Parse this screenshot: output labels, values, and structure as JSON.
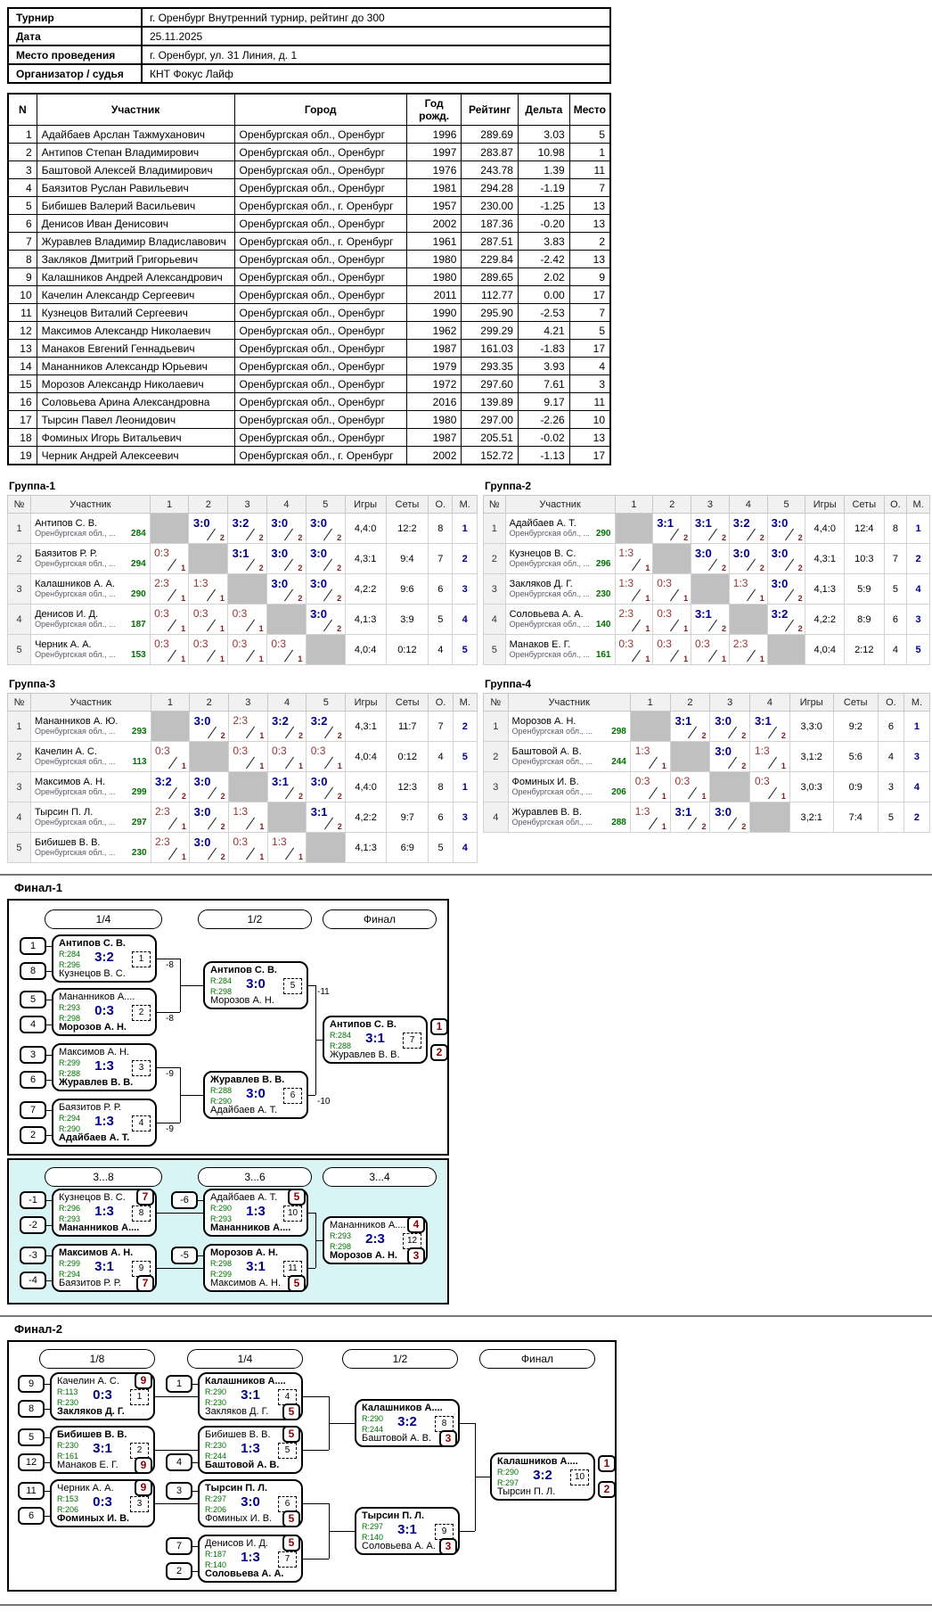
{
  "colors": {
    "win_score": "#00008b",
    "loss_score": "#993333",
    "rating_green": "#007000",
    "place_red": "#8b0000",
    "consolation_bg": "#d9f4f4",
    "self_cell": "#c0c0c0"
  },
  "info": {
    "rows": [
      {
        "label": "Турнир",
        "value": "г. Оренбург Внутренний турнир, рейтинг до 300"
      },
      {
        "label": "Дата",
        "value": "25.11.2025"
      },
      {
        "label": "Место проведения",
        "value": "г. Оренбург, ул. 31 Линия, д. 1"
      },
      {
        "label": "Организатор / судья",
        "value": "КНТ Фокус Лайф"
      }
    ]
  },
  "participants": {
    "headers": [
      "N",
      "Участник",
      "Город",
      "Год рожд.",
      "Рейтинг",
      "Дельта",
      "Место"
    ],
    "rows": [
      [
        "1",
        "Адайбаев Арслан Тажмуханович",
        "Оренбургская обл., Оренбург",
        "1996",
        "289.69",
        "3.03",
        "5"
      ],
      [
        "2",
        "Антипов Степан Владимирович",
        "Оренбургская обл., Оренбург",
        "1997",
        "283.87",
        "10.98",
        "1"
      ],
      [
        "3",
        "Баштовой Алексей Владимирович",
        "Оренбургская обл., Оренбург",
        "1976",
        "243.78",
        "1.39",
        "11"
      ],
      [
        "4",
        "Баязитов Руслан Равильевич",
        "Оренбургская обл., Оренбург",
        "1981",
        "294.28",
        "-1.19",
        "7"
      ],
      [
        "5",
        "Бибишев Валерий Васильевич",
        "Оренбургская обл., г. Оренбург",
        "1957",
        "230.00",
        "-1.25",
        "13"
      ],
      [
        "6",
        "Денисов Иван Денисович",
        "Оренбургская обл., Оренбург",
        "2002",
        "187.36",
        "-0.20",
        "13"
      ],
      [
        "7",
        "Журавлев Владимир Владиславович",
        "Оренбургская обл., г. Оренбург",
        "1961",
        "287.51",
        "3.83",
        "2"
      ],
      [
        "8",
        "Закляков Дмитрий Григорьевич",
        "Оренбургская обл., Оренбург",
        "1980",
        "229.84",
        "-2.42",
        "13"
      ],
      [
        "9",
        "Калашников Андрей Александрович",
        "Оренбургская обл., Оренбург",
        "1980",
        "289.65",
        "2.02",
        "9"
      ],
      [
        "10",
        "Качелин Александр Сергеевич",
        "Оренбургская обл., Оренбург",
        "2011",
        "112.77",
        "0.00",
        "17"
      ],
      [
        "11",
        "Кузнецов Виталий Сергеевич",
        "Оренбургская обл., Оренбург",
        "1990",
        "295.90",
        "-2.53",
        "7"
      ],
      [
        "12",
        "Максимов Александр Николаевич",
        "Оренбургская обл., Оренбург",
        "1962",
        "299.29",
        "4.21",
        "5"
      ],
      [
        "13",
        "Манаков Евгений Геннадьевич",
        "Оренбургская обл., Оренбург",
        "1987",
        "161.03",
        "-1.83",
        "17"
      ],
      [
        "14",
        "Мананников Александр Юрьевич",
        "Оренбургская обл., Оренбург",
        "1979",
        "293.35",
        "3.93",
        "4"
      ],
      [
        "15",
        "Морозов Александр Николаевич",
        "Оренбургская обл., Оренбург",
        "1972",
        "297.60",
        "7.61",
        "3"
      ],
      [
        "16",
        "Соловьева Арина Александровна",
        "Оренбургская обл., Оренбург",
        "2016",
        "139.89",
        "9.17",
        "11"
      ],
      [
        "17",
        "Тырсин Павел Леонидович",
        "Оренбургская обл., Оренбург",
        "1980",
        "297.00",
        "-2.26",
        "10"
      ],
      [
        "18",
        "Фоминых Игорь Витальевич",
        "Оренбургская обл., Оренбург",
        "1987",
        "205.51",
        "-0.02",
        "13"
      ],
      [
        "19",
        "Черник Андрей Алексеевич",
        "Оренбургская обл., г. Оренбург",
        "2002",
        "152.72",
        "-1.13",
        "17"
      ]
    ]
  },
  "groups": [
    {
      "title": "Группа-1",
      "region": "Оренбургская обл., ...",
      "headers": [
        "№",
        "Участник",
        "1",
        "2",
        "3",
        "4",
        "5",
        "Игры",
        "Сеты",
        "О.",
        "М."
      ],
      "players": [
        {
          "name": "Антипов С. В.",
          "rating": "284",
          "cells": [
            "",
            "3:0|2|w",
            "3:2|2|w",
            "3:0|2|w",
            "3:0|2|w"
          ],
          "games": "4,4:0",
          "sets": "12:2",
          "pts": "8",
          "place": "1"
        },
        {
          "name": "Баязитов Р. Р.",
          "rating": "294",
          "cells": [
            "0:3|1|l",
            "",
            "3:1|2|w",
            "3:0|2|w",
            "3:0|2|w"
          ],
          "games": "4,3:1",
          "sets": "9:4",
          "pts": "7",
          "place": "2"
        },
        {
          "name": "Калашников А. А.",
          "rating": "290",
          "cells": [
            "2:3|1|l",
            "1:3|1|l",
            "",
            "3:0|2|w",
            "3:0|2|w"
          ],
          "games": "4,2:2",
          "sets": "9:6",
          "pts": "6",
          "place": "3"
        },
        {
          "name": "Денисов И. Д.",
          "rating": "187",
          "cells": [
            "0:3|1|l",
            "0:3|1|l",
            "0:3|1|l",
            "",
            "3:0|2|w"
          ],
          "games": "4,1:3",
          "sets": "3:9",
          "pts": "5",
          "place": "4"
        },
        {
          "name": "Черник А. А.",
          "rating": "153",
          "cells": [
            "0:3|1|l",
            "0:3|1|l",
            "0:3|1|l",
            "0:3|1|l",
            ""
          ],
          "games": "4,0:4",
          "sets": "0:12",
          "pts": "4",
          "place": "5"
        }
      ]
    },
    {
      "title": "Группа-2",
      "region": "Оренбургская обл., ...",
      "headers": [
        "№",
        "Участник",
        "1",
        "2",
        "3",
        "4",
        "5",
        "Игры",
        "Сеты",
        "О.",
        "М."
      ],
      "players": [
        {
          "name": "Адайбаев А. Т.",
          "rating": "290",
          "cells": [
            "",
            "3:1|2|w",
            "3:1|2|w",
            "3:2|2|w",
            "3:0|2|w"
          ],
          "games": "4,4:0",
          "sets": "12:4",
          "pts": "8",
          "place": "1"
        },
        {
          "name": "Кузнецов В. С.",
          "rating": "296",
          "cells": [
            "1:3|1|l",
            "",
            "3:0|2|w",
            "3:0|2|w",
            "3:0|2|w"
          ],
          "games": "4,3:1",
          "sets": "10:3",
          "pts": "7",
          "place": "2"
        },
        {
          "name": "Закляков Д. Г.",
          "rating": "230",
          "cells": [
            "1:3|1|l",
            "0:3|1|l",
            "",
            "1:3|1|l",
            "3:0|2|w"
          ],
          "games": "4,1:3",
          "sets": "5:9",
          "pts": "5",
          "place": "4"
        },
        {
          "name": "Соловьева А. А.",
          "rating": "140",
          "cells": [
            "2:3|1|l",
            "0:3|1|l",
            "3:1|2|w",
            "",
            "3:2|2|w"
          ],
          "games": "4,2:2",
          "sets": "8:9",
          "pts": "6",
          "place": "3"
        },
        {
          "name": "Манаков Е. Г.",
          "rating": "161",
          "cells": [
            "0:3|1|l",
            "0:3|1|l",
            "0:3|1|l",
            "2:3|1|l",
            ""
          ],
          "games": "4,0:4",
          "sets": "2:12",
          "pts": "4",
          "place": "5"
        }
      ]
    },
    {
      "title": "Группа-3",
      "region": "Оренбургская обл., ...",
      "headers": [
        "№",
        "Участник",
        "1",
        "2",
        "3",
        "4",
        "5",
        "Игры",
        "Сеты",
        "О.",
        "М."
      ],
      "players": [
        {
          "name": "Мананников А. Ю.",
          "rating": "293",
          "cells": [
            "",
            "3:0|2|w",
            "2:3|1|l",
            "3:2|2|w",
            "3:2|2|w"
          ],
          "games": "4,3:1",
          "sets": "11:7",
          "pts": "7",
          "place": "2"
        },
        {
          "name": "Качелин А. С.",
          "rating": "113",
          "cells": [
            "0:3|1|l",
            "",
            "0:3|1|l",
            "0:3|1|l",
            "0:3|1|l"
          ],
          "games": "4,0:4",
          "sets": "0:12",
          "pts": "4",
          "place": "5"
        },
        {
          "name": "Максимов А. Н.",
          "rating": "299",
          "cells": [
            "3:2|2|w",
            "3:0|2|w",
            "",
            "3:1|2|w",
            "3:0|2|w"
          ],
          "games": "4,4:0",
          "sets": "12:3",
          "pts": "8",
          "place": "1"
        },
        {
          "name": "Тырсин П. Л.",
          "rating": "297",
          "cells": [
            "2:3|1|l",
            "3:0|2|w",
            "1:3|1|l",
            "",
            "3:1|2|w"
          ],
          "games": "4,2:2",
          "sets": "9:7",
          "pts": "6",
          "place": "3"
        },
        {
          "name": "Бибишев В. В.",
          "rating": "230",
          "cells": [
            "2:3|1|l",
            "3:0|2|w",
            "0:3|1|l",
            "1:3|1|l",
            ""
          ],
          "games": "4,1:3",
          "sets": "6:9",
          "pts": "5",
          "place": "4"
        }
      ]
    },
    {
      "title": "Группа-4",
      "region": "Оренбургская обл., ...",
      "headers": [
        "№",
        "Участник",
        "1",
        "2",
        "3",
        "4",
        "Игры",
        "Сеты",
        "О.",
        "М."
      ],
      "players": [
        {
          "name": "Морозов А. Н.",
          "rating": "298",
          "cells": [
            "",
            "3:1|2|w",
            "3:0|2|w",
            "3:1|2|w"
          ],
          "games": "3,3:0",
          "sets": "9:2",
          "pts": "6",
          "place": "1"
        },
        {
          "name": "Баштовой А. В.",
          "rating": "244",
          "cells": [
            "1:3|1|l",
            "",
            "3:0|2|w",
            "1:3|1|l"
          ],
          "games": "3,1:2",
          "sets": "5:6",
          "pts": "4",
          "place": "3"
        },
        {
          "name": "Фоминых И. В.",
          "rating": "206",
          "cells": [
            "0:3|1|l",
            "0:3|1|l",
            "",
            "0:3|1|l"
          ],
          "games": "3,0:3",
          "sets": "0:9",
          "pts": "3",
          "place": "4"
        },
        {
          "name": "Журавлев В. В.",
          "rating": "288",
          "cells": [
            "1:3|1|l",
            "3:1|2|w",
            "3:0|2|w",
            ""
          ],
          "games": "3,2:1",
          "sets": "7:4",
          "pts": "5",
          "place": "2"
        }
      ]
    }
  ],
  "final1": {
    "title": "Финал-1",
    "rounds": [
      "1/4",
      "1/2",
      "Финал"
    ],
    "consolation_rounds": [
      "3...8",
      "3...6",
      "3...4"
    ],
    "matches": [
      {
        "id": 1,
        "score": "3:2",
        "num": "1",
        "delta": "-8",
        "top": {
          "name": "Антипов С. В.",
          "r": "R:284",
          "win": true,
          "seed": "1"
        },
        "bot": {
          "name": "Кузнецов В. С.",
          "r": "R:296",
          "seed": "8"
        }
      },
      {
        "id": 2,
        "score": "0:3",
        "num": "2",
        "delta": "-8",
        "top": {
          "name": "Мананников А....",
          "r": "R:293",
          "seed": "5"
        },
        "bot": {
          "name": "Морозов А. Н.",
          "r": "R:298",
          "win": true,
          "seed": "4"
        }
      },
      {
        "id": 3,
        "score": "1:3",
        "num": "3",
        "delta": "-9",
        "top": {
          "name": "Максимов А. Н.",
          "r": "R:299",
          "seed": "3"
        },
        "bot": {
          "name": "Журавлев В. В.",
          "r": "R:288",
          "win": true,
          "seed": "6"
        }
      },
      {
        "id": 4,
        "score": "1:3",
        "num": "4",
        "delta": "-9",
        "top": {
          "name": "Баязитов Р. Р.",
          "r": "R:294",
          "seed": "7"
        },
        "bot": {
          "name": "Адайбаев А. Т.",
          "r": "R:290",
          "win": true,
          "seed": "2"
        }
      },
      {
        "id": 5,
        "score": "3:0",
        "num": "5",
        "delta": "-11",
        "top": {
          "name": "Антипов С. В.",
          "r": "R:284",
          "win": true
        },
        "bot": {
          "name": "Морозов А. Н.",
          "r": "R:298"
        }
      },
      {
        "id": 6,
        "score": "3:0",
        "num": "6",
        "delta": "-10",
        "top": {
          "name": "Журавлев В. В.",
          "r": "R:288",
          "win": true
        },
        "bot": {
          "name": "Адайбаев А. Т.",
          "r": "R:290"
        }
      },
      {
        "id": 7,
        "score": "3:1",
        "num": "7",
        "final": true,
        "top": {
          "name": "Антипов С. В.",
          "r": "R:284",
          "win": true,
          "badge": "1"
        },
        "bot": {
          "name": "Журавлев В. В.",
          "r": "R:288",
          "badge": "2"
        }
      }
    ],
    "consolation_matches": [
      {
        "id": 8,
        "score": "1:3",
        "num": "8",
        "top": {
          "name": "Кузнецов В. С.",
          "r": "R:296",
          "seed": "-1",
          "badge": "7"
        },
        "bot": {
          "name": "Мананников А....",
          "r": "R:293",
          "win": true,
          "seed": "-2"
        }
      },
      {
        "id": 9,
        "score": "3:1",
        "num": "9",
        "top": {
          "name": "Максимов А. Н.",
          "r": "R:299",
          "win": true,
          "seed": "-3"
        },
        "bot": {
          "name": "Баязитов Р. Р.",
          "r": "R:294",
          "seed": "-4",
          "badge": "7"
        }
      },
      {
        "id": 10,
        "score": "1:3",
        "num": "10",
        "top": {
          "name": "Адайбаев А. Т.",
          "r": "R:290",
          "seed": "-6",
          "badge": "5"
        },
        "bot": {
          "name": "Мананников А....",
          "r": "R:293",
          "win": true
        }
      },
      {
        "id": 11,
        "score": "3:1",
        "num": "11",
        "top": {
          "name": "Морозов А. Н.",
          "r": "R:298",
          "win": true,
          "seed": "-5"
        },
        "bot": {
          "name": "Максимов А. Н.",
          "r": "R:299",
          "badge": "5"
        }
      },
      {
        "id": 12,
        "score": "2:3",
        "num": "12",
        "top": {
          "name": "Мананников А....",
          "r": "R:293",
          "badge": "4"
        },
        "bot": {
          "name": "Морозов А. Н.",
          "r": "R:298",
          "win": true,
          "badge": "3"
        }
      }
    ]
  },
  "final2": {
    "title": "Финал-2",
    "rounds": [
      "1/8",
      "1/4",
      "1/2",
      "Финал"
    ],
    "matches": [
      {
        "id": 1,
        "score": "0:3",
        "num": "1",
        "top": {
          "name": "Качелин А. С.",
          "r": "R:113",
          "seed": "9",
          "badge": "9"
        },
        "bot": {
          "name": "Закляков Д. Г.",
          "r": "R:230",
          "win": true,
          "seed": "8"
        }
      },
      {
        "id": 2,
        "score": "3:1",
        "num": "2",
        "top": {
          "name": "Бибишев В. В.",
          "r": "R:230",
          "win": true,
          "seed": "5"
        },
        "bot": {
          "name": "Манаков Е. Г.",
          "r": "R:161",
          "seed": "12",
          "badge": "9"
        }
      },
      {
        "id": 3,
        "score": "0:3",
        "num": "3",
        "top": {
          "name": "Черник А. А.",
          "r": "R:153",
          "seed": "11",
          "badge": "9"
        },
        "bot": {
          "name": "Фоминых И. В.",
          "r": "R:206",
          "win": true,
          "seed": "6"
        }
      },
      {
        "id": 4,
        "score": "3:1",
        "num": "4",
        "top": {
          "name": "Калашников А....",
          "r": "R:290",
          "win": true,
          "seed": "1"
        },
        "bot": {
          "name": "Закляков Д. Г.",
          "r": "R:230",
          "badge": "5"
        }
      },
      {
        "id": 5,
        "score": "1:3",
        "num": "5",
        "top": {
          "name": "Бибишев В. В.",
          "r": "R:230",
          "badge": "5"
        },
        "bot": {
          "name": "Баштовой А. В.",
          "r": "R:244",
          "win": true,
          "seed": "4"
        }
      },
      {
        "id": 6,
        "score": "3:0",
        "num": "6",
        "top": {
          "name": "Тырсин П. Л.",
          "r": "R:297",
          "win": true,
          "seed": "3"
        },
        "bot": {
          "name": "Фоминых И. В.",
          "r": "R:206",
          "badge": "5"
        }
      },
      {
        "id": 7,
        "score": "1:3",
        "num": "7",
        "top": {
          "name": "Денисов И. Д.",
          "r": "R:187",
          "seed": "7",
          "badge": "5"
        },
        "bot": {
          "name": "Соловьева А. А.",
          "r": "R:140",
          "win": true,
          "seed": "2"
        }
      },
      {
        "id": 8,
        "score": "3:2",
        "num": "8",
        "top": {
          "name": "Калашников А....",
          "r": "R:290",
          "win": true
        },
        "bot": {
          "name": "Баштовой А. В.",
          "r": "R:244",
          "badge": "3"
        }
      },
      {
        "id": 9,
        "score": "3:1",
        "num": "9",
        "top": {
          "name": "Тырсин П. Л.",
          "r": "R:297",
          "win": true
        },
        "bot": {
          "name": "Соловьева А. А.",
          "r": "R:140",
          "badge": "3"
        }
      },
      {
        "id": 10,
        "score": "3:2",
        "num": "10",
        "final": true,
        "top": {
          "name": "Калашников А....",
          "r": "R:290",
          "win": true,
          "badge": "1"
        },
        "bot": {
          "name": "Тырсин П. Л.",
          "r": "R:297",
          "badge": "2"
        }
      }
    ]
  }
}
